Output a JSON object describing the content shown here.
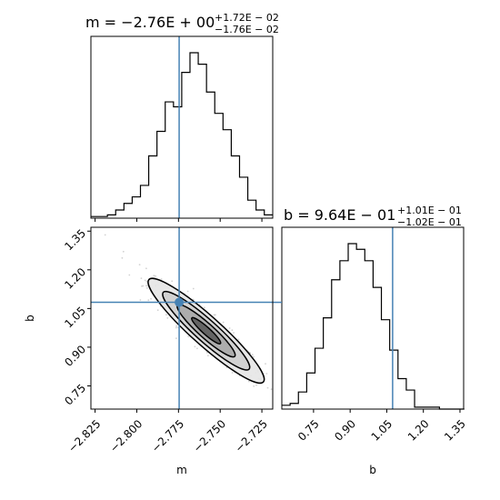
{
  "chart_data": {
    "type": "corner",
    "colors": {
      "truth": "#4682b4",
      "hist": "#000000",
      "scatter": "#7f7f7f"
    },
    "truths": {
      "m": -2.7746,
      "b": 1.074
    },
    "panels": {
      "m_hist": {
        "title_main": "m = −2.76E + 00",
        "title_sup": "+1.72E − 02",
        "title_sub": "−1.76E − 02",
        "xlim": [
          -2.8275,
          -2.7185
        ],
        "bin_edges": [
          -2.8275,
          -2.82255,
          -2.8176,
          -2.81265,
          -2.8077,
          -2.80275,
          -2.7978,
          -2.79285,
          -2.7879,
          -2.78295,
          -2.778,
          -2.77305,
          -2.7681,
          -2.76315,
          -2.7582,
          -2.75325,
          -2.7483,
          -2.74335,
          -2.7384,
          -2.73345,
          -2.7285,
          -2.72355,
          -2.7186
        ],
        "counts": [
          1,
          1,
          2,
          5,
          9,
          13,
          20,
          38,
          53,
          71,
          68,
          89,
          101,
          94,
          77,
          64,
          54,
          38,
          25,
          11,
          5,
          2
        ]
      },
      "b_hist": {
        "title_main": "b = 9.64E − 01",
        "title_sup": "+1.01E − 01",
        "title_sub": "−1.02E − 01",
        "xlim": [
          0.62,
          1.365
        ],
        "bin_edges": [
          0.62,
          0.654,
          0.688,
          0.722,
          0.756,
          0.79,
          0.824,
          0.858,
          0.892,
          0.926,
          0.96,
          0.994,
          1.028,
          1.062,
          1.096,
          1.13,
          1.164,
          1.198,
          1.232,
          1.266,
          1.3,
          1.334,
          1.368
        ],
        "counts": [
          2,
          3,
          9,
          19,
          32,
          48,
          68,
          78,
          87,
          84,
          78,
          64,
          47,
          31,
          16,
          10,
          1,
          1,
          1,
          0,
          0,
          0
        ]
      },
      "joint": {
        "xlim": [
          -2.8275,
          -2.7185
        ],
        "ylim": [
          0.66,
          1.365
        ],
        "center": [
          -2.7584,
          0.9638
        ],
        "sigma_m": 0.0174,
        "sigma_b": 0.1015,
        "rho": -0.93,
        "contour_levels_sigma": [
          0.5,
          1.0,
          1.5,
          2.0
        ]
      }
    },
    "axes": {
      "m": {
        "label": "m",
        "ticks": [
          -2.825,
          -2.8,
          -2.775,
          -2.75,
          -2.725
        ],
        "tick_labels": [
          "−2.825",
          "−2.800",
          "−2.775",
          "−2.750",
          "−2.725"
        ]
      },
      "b": {
        "label": "b",
        "ticks": [
          0.75,
          0.9,
          1.05,
          1.2,
          1.35
        ],
        "tick_labels": [
          "0.75",
          "0.90",
          "1.05",
          "1.20",
          "1.35"
        ]
      }
    }
  }
}
